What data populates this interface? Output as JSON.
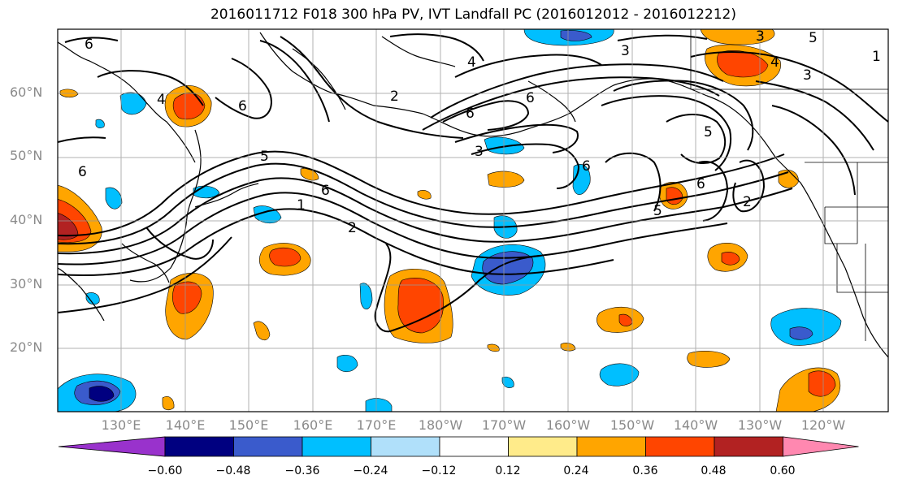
{
  "title": "2016011712 F018 300 hPa PV, IVT Landfall PC (2016012012 - 2016012212)",
  "lat_labels": [
    "60°N",
    "50°N",
    "40°N",
    "30°N",
    "20°N"
  ],
  "lon_labels": [
    "130°E",
    "140°E",
    "150°E",
    "160°E",
    "170°E",
    "180°W",
    "170°W",
    "160°W",
    "150°W",
    "140°W",
    "130°W",
    "120°W"
  ],
  "colorbar": {
    "tick_labels": [
      "−0.60",
      "−0.48",
      "−0.36",
      "−0.24",
      "−0.12",
      "0.12",
      "0.24",
      "0.36",
      "0.48",
      "0.60"
    ],
    "colors": [
      "#9932cc",
      "#000080",
      "#3a5bcc",
      "#00bfff",
      "#b0e0fa",
      "#ffffff",
      "#ffeb8a",
      "#ffa500",
      "#ff4500",
      "#b22222",
      "#ff88b0"
    ]
  },
  "contour_labels": [
    "6",
    "6",
    "6",
    "6",
    "6",
    "6",
    "6",
    "6",
    "5",
    "5",
    "5",
    "5",
    "4",
    "4",
    "4",
    "3",
    "3",
    "3",
    "3",
    "2",
    "2",
    "2",
    "1",
    "1"
  ]
}
